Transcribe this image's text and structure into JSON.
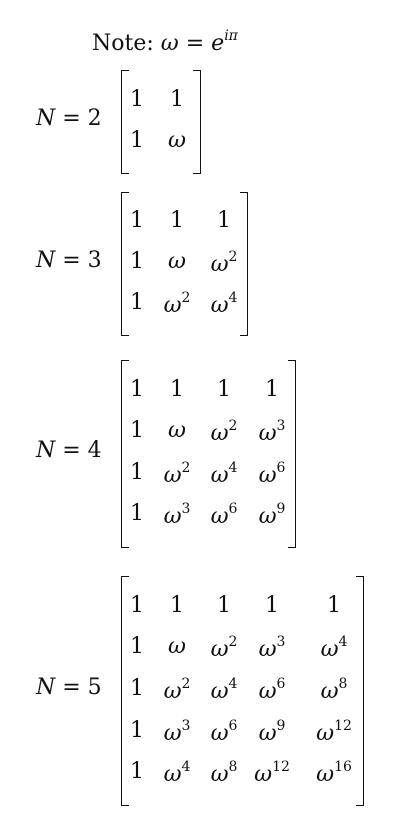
{
  "note": {
    "prefix": "Note:",
    "lhs": "ω",
    "eq": "=",
    "base": "e",
    "exponent": "iπ"
  },
  "matrices": [
    {
      "label_var": "N",
      "label_eq": "=",
      "n": "2",
      "rows": [
        [
          [
            "1",
            ""
          ],
          [
            "1",
            ""
          ]
        ],
        [
          [
            "1",
            ""
          ],
          [
            "ω",
            ""
          ]
        ]
      ]
    },
    {
      "label_var": "N",
      "label_eq": "=",
      "n": "3",
      "rows": [
        [
          [
            "1",
            ""
          ],
          [
            "1",
            ""
          ],
          [
            "1",
            ""
          ]
        ],
        [
          [
            "1",
            ""
          ],
          [
            "ω",
            ""
          ],
          [
            "ω",
            "2"
          ]
        ],
        [
          [
            "1",
            ""
          ],
          [
            "ω",
            "2"
          ],
          [
            "ω",
            "4"
          ]
        ]
      ]
    },
    {
      "label_var": "N",
      "label_eq": "=",
      "n": "4",
      "rows": [
        [
          [
            "1",
            ""
          ],
          [
            "1",
            ""
          ],
          [
            "1",
            ""
          ],
          [
            "1",
            ""
          ]
        ],
        [
          [
            "1",
            ""
          ],
          [
            "ω",
            ""
          ],
          [
            "ω",
            "2"
          ],
          [
            "ω",
            "3"
          ]
        ],
        [
          [
            "1",
            ""
          ],
          [
            "ω",
            "2"
          ],
          [
            "ω",
            "4"
          ],
          [
            "ω",
            "6"
          ]
        ],
        [
          [
            "1",
            ""
          ],
          [
            "ω",
            "3"
          ],
          [
            "ω",
            "6"
          ],
          [
            "ω",
            "9"
          ]
        ]
      ]
    },
    {
      "label_var": "N",
      "label_eq": "=",
      "n": "5",
      "rows": [
        [
          [
            "1",
            ""
          ],
          [
            "1",
            ""
          ],
          [
            "1",
            ""
          ],
          [
            "1",
            ""
          ],
          [
            "1",
            ""
          ]
        ],
        [
          [
            "1",
            ""
          ],
          [
            "ω",
            ""
          ],
          [
            "ω",
            "2"
          ],
          [
            "ω",
            "3"
          ],
          [
            "ω",
            "4"
          ]
        ],
        [
          [
            "1",
            ""
          ],
          [
            "ω",
            "2"
          ],
          [
            "ω",
            "4"
          ],
          [
            "ω",
            "6"
          ],
          [
            "ω",
            "8"
          ]
        ],
        [
          [
            "1",
            ""
          ],
          [
            "ω",
            "3"
          ],
          [
            "ω",
            "6"
          ],
          [
            "ω",
            "9"
          ],
          [
            "ω",
            "12"
          ]
        ],
        [
          [
            "1",
            ""
          ],
          [
            "ω",
            "4"
          ],
          [
            "ω",
            "8"
          ],
          [
            "ω",
            "12"
          ],
          [
            "ω",
            "16"
          ]
        ]
      ]
    }
  ]
}
